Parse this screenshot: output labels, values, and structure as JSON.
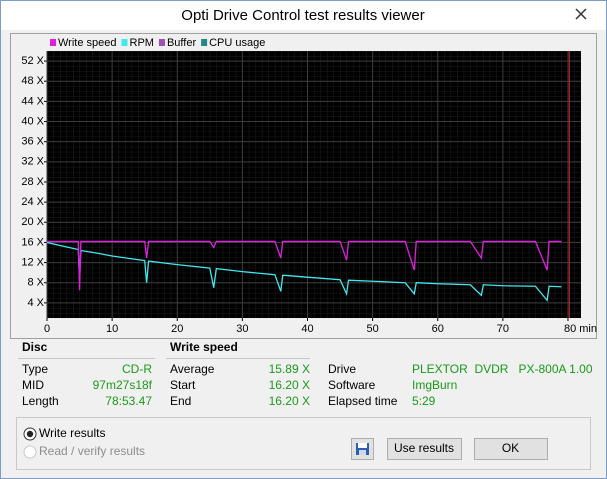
{
  "window": {
    "title": "Opti Drive Control test results viewer"
  },
  "chart_data": {
    "type": "line",
    "x": [
      0,
      2,
      4.8,
      5,
      5.2,
      8,
      10,
      15,
      15.3,
      15.6,
      20,
      25,
      25.6,
      26,
      30,
      35,
      35.9,
      36.2,
      40,
      45,
      46,
      46.3,
      50,
      55,
      56.4,
      56.7,
      60,
      65,
      66.7,
      67,
      70,
      75,
      76.8,
      77.1,
      79
    ],
    "series": [
      {
        "name": "Write speed",
        "color": "#e020e0",
        "values": [
          16.2,
          16.2,
          16.2,
          6.5,
          16.2,
          16.2,
          16.2,
          16.2,
          12.9,
          16.2,
          16.2,
          16.2,
          15,
          16.2,
          16.2,
          16.2,
          12.9,
          16.2,
          16.2,
          16.2,
          12.5,
          16.2,
          16.2,
          16.2,
          10.5,
          16.2,
          16.2,
          16.2,
          12.9,
          16.2,
          16.2,
          16.2,
          10.5,
          16.2,
          16.2
        ]
      },
      {
        "name": "RPM",
        "color": "#40e8f0",
        "values": [
          16,
          15.4,
          14.6,
          9,
          14.4,
          13.8,
          13.3,
          12.4,
          8,
          12.3,
          11.6,
          10.9,
          7,
          10.8,
          10.2,
          9.6,
          6.3,
          9.5,
          9.1,
          8.6,
          5.8,
          8.5,
          8.3,
          8.0,
          5.8,
          8.0,
          7.8,
          7.6,
          5.5,
          7.6,
          7.4,
          7.3,
          4.5,
          7.3,
          7.2
        ]
      },
      {
        "name": "Buffer",
        "color": "#a050b0",
        "values": [
          null,
          null,
          null,
          null,
          null,
          null,
          null,
          null,
          null,
          null,
          null,
          null,
          null,
          null,
          null,
          null,
          null,
          null,
          null,
          null,
          null,
          null,
          null,
          null,
          null,
          null,
          null,
          null,
          null,
          null,
          null,
          null,
          null,
          null,
          null
        ]
      },
      {
        "name": "CPU usage",
        "color": "#208888",
        "values": [
          null,
          null,
          null,
          null,
          null,
          null,
          null,
          null,
          null,
          null,
          null,
          null,
          null,
          null,
          null,
          null,
          null,
          null,
          null,
          null,
          null,
          null,
          null,
          null,
          null,
          null,
          null,
          null,
          null,
          null,
          null,
          null,
          null,
          null,
          null
        ]
      }
    ],
    "xlim": [
      0,
      82
    ],
    "xticks": [
      0,
      10,
      20,
      30,
      40,
      50,
      60,
      70,
      {
        "value": 80,
        "label": "80 min"
      }
    ],
    "ylim": [
      1,
      54
    ],
    "yticks": [
      {
        "value": 4,
        "label": "4 X"
      },
      {
        "value": 8,
        "label": "8 X"
      },
      {
        "value": 12,
        "label": "12 X"
      },
      {
        "value": 16,
        "label": "16 X"
      },
      {
        "value": 20,
        "label": "20 X"
      },
      {
        "value": 24,
        "label": "24 X"
      },
      {
        "value": 28,
        "label": "28 X"
      },
      {
        "value": 32,
        "label": "32 X"
      },
      {
        "value": 36,
        "label": "36 X"
      },
      {
        "value": 40,
        "label": "40 X"
      },
      {
        "value": 44,
        "label": "44 X"
      },
      {
        "value": 48,
        "label": "48 X"
      },
      {
        "value": 52,
        "label": "52 X"
      }
    ],
    "grid": true,
    "end_marker": {
      "value": 80.2,
      "color": "#e02020"
    }
  },
  "disc": {
    "heading": "Disc",
    "rows": [
      [
        "Type",
        "CD-R"
      ],
      [
        "MID",
        "97m27s18f"
      ],
      [
        "Length",
        "78:53.47"
      ]
    ]
  },
  "write_speed": {
    "heading": "Write speed",
    "rows": [
      [
        "Average",
        "15.89 X"
      ],
      [
        "Start",
        "16.20 X"
      ],
      [
        "End",
        "16.20 X"
      ]
    ]
  },
  "drive": {
    "rows": [
      [
        "Drive",
        "PLEXTOR  DVDR   PX-800A 1.00"
      ],
      [
        "Software",
        "ImgBurn"
      ],
      [
        "Elapsed time",
        "5:29"
      ]
    ]
  },
  "options": [
    "Write results",
    "Read / verify results"
  ],
  "buttons": [
    "Use results",
    "OK"
  ]
}
